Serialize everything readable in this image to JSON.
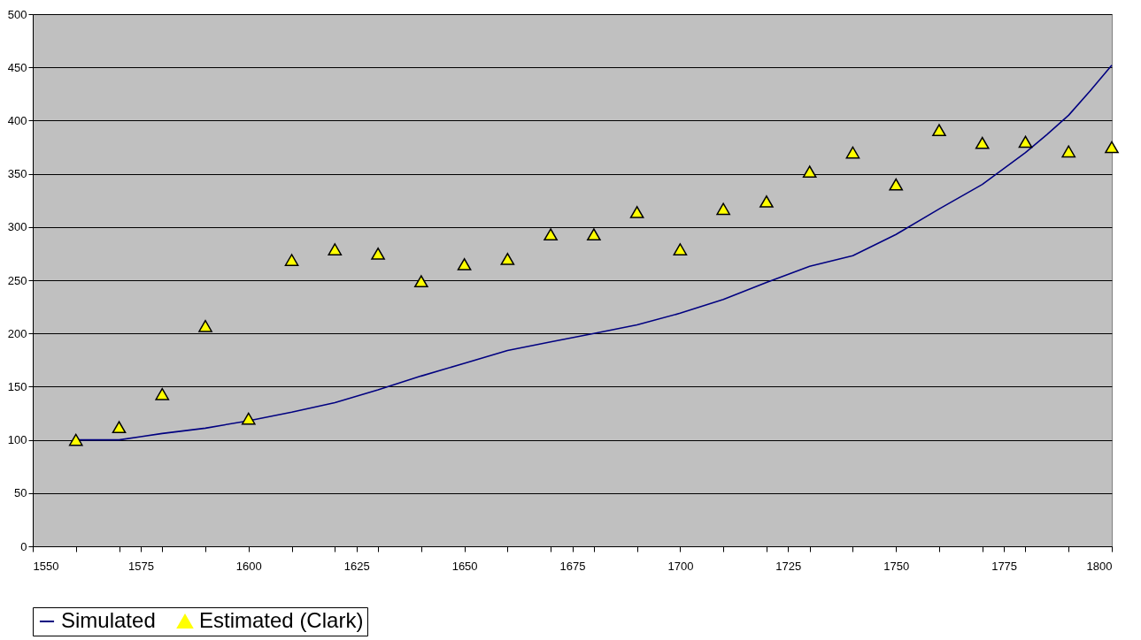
{
  "chart_data": {
    "type": "line",
    "xlim": [
      1550,
      1800
    ],
    "ylim": [
      0,
      500
    ],
    "xticks": [
      1550,
      {
        "value": 1560,
        "label": null
      },
      {
        "value": 1570,
        "label": null
      },
      1575,
      {
        "value": 1580,
        "label": null
      },
      {
        "value": 1590,
        "label": null
      },
      1600,
      {
        "value": 1610,
        "label": null
      },
      {
        "value": 1620,
        "label": null
      },
      1625,
      {
        "value": 1630,
        "label": null
      },
      {
        "value": 1640,
        "label": null
      },
      1650,
      {
        "value": 1660,
        "label": null
      },
      {
        "value": 1670,
        "label": null
      },
      1675,
      {
        "value": 1680,
        "label": null
      },
      {
        "value": 1690,
        "label": null
      },
      1700,
      {
        "value": 1710,
        "label": null
      },
      {
        "value": 1720,
        "label": null
      },
      1725,
      {
        "value": 1730,
        "label": null
      },
      {
        "value": 1740,
        "label": null
      },
      1750,
      {
        "value": 1760,
        "label": null
      },
      {
        "value": 1770,
        "label": null
      },
      1775,
      {
        "value": 1780,
        "label": null
      },
      {
        "value": 1790,
        "label": null
      },
      1800
    ],
    "yticks": [
      0,
      50,
      100,
      150,
      200,
      250,
      300,
      350,
      400,
      450,
      500
    ],
    "grid": "y",
    "legend": "bottom",
    "series": [
      {
        "name": "Simulated",
        "color": "#000080",
        "marker": "none",
        "x": [
          1560,
          1570,
          1575,
          1580,
          1590,
          1600,
          1610,
          1620,
          1630,
          1640,
          1650,
          1660,
          1670,
          1680,
          1690,
          1700,
          1710,
          1720,
          1730,
          1740,
          1750,
          1760,
          1770,
          1780,
          1785,
          1790,
          1795,
          1800
        ],
        "values": [
          100,
          100,
          103,
          106,
          111,
          118,
          126,
          135,
          147,
          160,
          172,
          184,
          192,
          200,
          208,
          219,
          232,
          248,
          263,
          273,
          293,
          317,
          340,
          370,
          387,
          405,
          428,
          452
        ]
      },
      {
        "name": "Estimated (Clark)",
        "type": "scatter",
        "color": "#ffff00",
        "marker": "triangle",
        "x": [
          1560,
          1570,
          1580,
          1590,
          1600,
          1610,
          1620,
          1630,
          1640,
          1650,
          1660,
          1670,
          1680,
          1690,
          1700,
          1710,
          1720,
          1730,
          1740,
          1750,
          1760,
          1770,
          1780,
          1790,
          1800
        ],
        "values": [
          100,
          112,
          143,
          207,
          120,
          269,
          279,
          275,
          249,
          265,
          270,
          293,
          293,
          314,
          279,
          317,
          324,
          352,
          370,
          340,
          391,
          379,
          380,
          371,
          375
        ]
      }
    ]
  }
}
